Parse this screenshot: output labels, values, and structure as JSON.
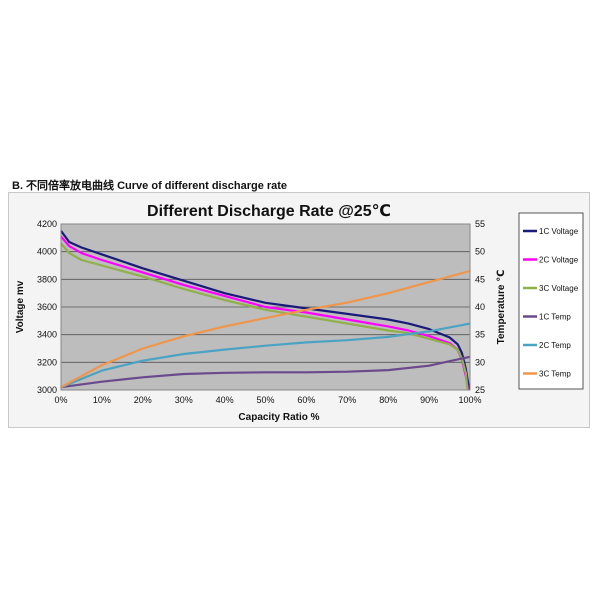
{
  "caption": "B.  不同倍率放电曲线 Curve of different discharge rate",
  "chart_data": {
    "type": "line",
    "title": "Different Discharge Rate @25℃",
    "xlabel": "Capacity Ratio  %",
    "ylabel": "Voltage mv",
    "y2label": "Temperature  ℃",
    "xlim": [
      0,
      100
    ],
    "ylim": [
      3000,
      4200
    ],
    "y2lim": [
      25,
      55
    ],
    "x_ticks": [
      "0%",
      "10%",
      "20%",
      "30%",
      "40%",
      "50%",
      "60%",
      "70%",
      "80%",
      "90%",
      "100%"
    ],
    "y_ticks": [
      "3000",
      "3200",
      "3400",
      "3600",
      "3800",
      "4000",
      "4200"
    ],
    "y2_ticks": [
      "25",
      "30",
      "35",
      "40",
      "45",
      "50",
      "55"
    ],
    "grid": true,
    "legend": "right",
    "series": [
      {
        "name": "1C Voltage",
        "axis": "left",
        "color": "#1a1a7a",
        "points": [
          [
            0,
            4150
          ],
          [
            2,
            4070
          ],
          [
            5,
            4030
          ],
          [
            10,
            3980
          ],
          [
            20,
            3880
          ],
          [
            30,
            3790
          ],
          [
            40,
            3700
          ],
          [
            50,
            3630
          ],
          [
            60,
            3590
          ],
          [
            70,
            3550
          ],
          [
            80,
            3510
          ],
          [
            85,
            3480
          ],
          [
            90,
            3440
          ],
          [
            95,
            3380
          ],
          [
            97,
            3330
          ],
          [
            98,
            3270
          ],
          [
            99,
            3150
          ],
          [
            99.8,
            3000
          ]
        ]
      },
      {
        "name": "2C Voltage",
        "axis": "left",
        "color": "#ff00ff",
        "points": [
          [
            0,
            4110
          ],
          [
            2,
            4040
          ],
          [
            5,
            3990
          ],
          [
            10,
            3940
          ],
          [
            20,
            3850
          ],
          [
            30,
            3760
          ],
          [
            40,
            3680
          ],
          [
            50,
            3600
          ],
          [
            60,
            3560
          ],
          [
            70,
            3510
          ],
          [
            80,
            3460
          ],
          [
            85,
            3430
          ],
          [
            90,
            3390
          ],
          [
            95,
            3340
          ],
          [
            97,
            3290
          ],
          [
            98,
            3220
          ],
          [
            99,
            3100
          ],
          [
            99.5,
            3000
          ]
        ]
      },
      {
        "name": "3C Voltage",
        "axis": "left",
        "color": "#8fb04a",
        "points": [
          [
            0,
            4060
          ],
          [
            2,
            3990
          ],
          [
            5,
            3940
          ],
          [
            10,
            3900
          ],
          [
            20,
            3820
          ],
          [
            30,
            3730
          ],
          [
            40,
            3650
          ],
          [
            50,
            3580
          ],
          [
            60,
            3530
          ],
          [
            70,
            3480
          ],
          [
            80,
            3430
          ],
          [
            85,
            3410
          ],
          [
            90,
            3370
          ],
          [
            95,
            3330
          ],
          [
            97,
            3290
          ],
          [
            98,
            3230
          ],
          [
            99,
            3120
          ],
          [
            99.4,
            3000
          ]
        ]
      },
      {
        "name": "1C Temp",
        "axis": "right",
        "color": "#6a4a8c",
        "points": [
          [
            0,
            25.5
          ],
          [
            10,
            26.5
          ],
          [
            20,
            27.3
          ],
          [
            30,
            27.9
          ],
          [
            40,
            28.1
          ],
          [
            50,
            28.2
          ],
          [
            60,
            28.2
          ],
          [
            70,
            28.3
          ],
          [
            80,
            28.6
          ],
          [
            90,
            29.4
          ],
          [
            95,
            30.2
          ],
          [
            100,
            31
          ]
        ]
      },
      {
        "name": "2C Temp",
        "axis": "right",
        "color": "#4ba3c3",
        "points": [
          [
            0,
            25.5
          ],
          [
            10,
            28.5
          ],
          [
            20,
            30.3
          ],
          [
            30,
            31.5
          ],
          [
            40,
            32.3
          ],
          [
            50,
            33
          ],
          [
            60,
            33.6
          ],
          [
            70,
            34
          ],
          [
            80,
            34.6
          ],
          [
            90,
            35.6
          ],
          [
            100,
            37
          ]
        ]
      },
      {
        "name": "3C Temp",
        "axis": "right",
        "color": "#f0964a",
        "points": [
          [
            0,
            25.5
          ],
          [
            10,
            29.5
          ],
          [
            20,
            32.5
          ],
          [
            30,
            34.7
          ],
          [
            40,
            36.5
          ],
          [
            50,
            38
          ],
          [
            60,
            39.5
          ],
          [
            70,
            40.8
          ],
          [
            80,
            42.5
          ],
          [
            90,
            44.5
          ],
          [
            100,
            46.5
          ]
        ]
      }
    ]
  }
}
